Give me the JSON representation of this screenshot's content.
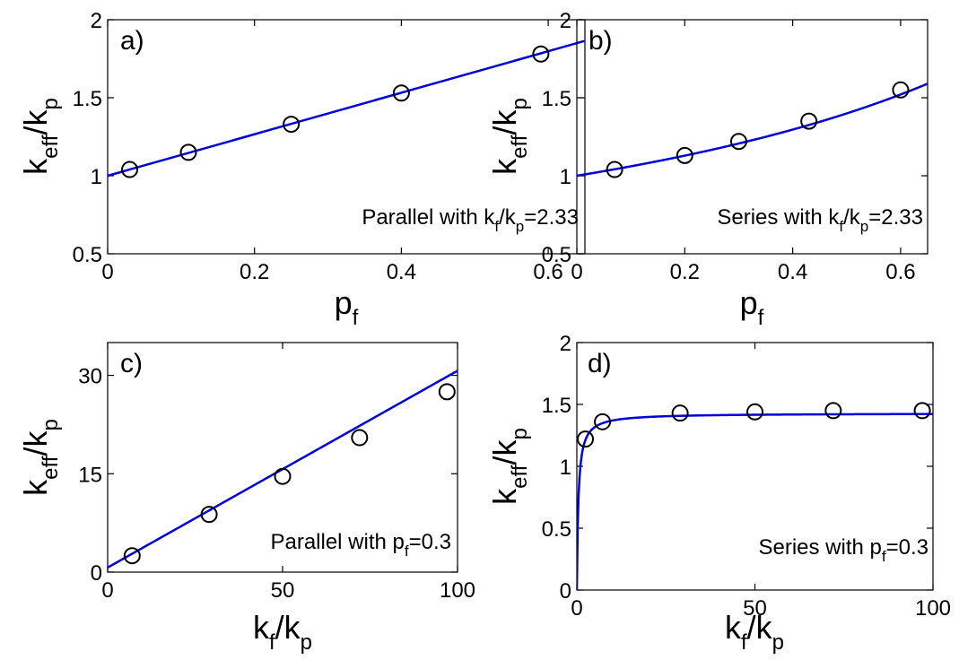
{
  "chart_data": [
    {
      "type": "scatter",
      "panel_label": "a)",
      "xlabel": {
        "base": "p",
        "sub": "f"
      },
      "ylabel": {
        "base1": "k",
        "sub1": "eff",
        "mid": "/k",
        "sub2": "p"
      },
      "annotation": {
        "before": "Parallel with k",
        "sub1": "f",
        "mid": "/k",
        "sub2": "p",
        "after": "=2.33"
      },
      "xlim": [
        0,
        0.65
      ],
      "ylim": [
        0.5,
        2
      ],
      "xticks": [
        0,
        0.2,
        0.4,
        0.6
      ],
      "xtick_labels": [
        "0",
        "0.2",
        "0.4",
        "0.6"
      ],
      "yticks": [
        0.5,
        1,
        1.5,
        2
      ],
      "ytick_labels": [
        "0.5",
        "1",
        "1.5",
        "2"
      ],
      "series": [
        {
          "kind": "markers",
          "x": [
            0.03,
            0.11,
            0.25,
            0.4,
            0.59
          ],
          "y": [
            1.04,
            1.15,
            1.33,
            1.53,
            1.78
          ]
        },
        {
          "kind": "line",
          "model": "parallel",
          "ratio": 2.33,
          "x_range": [
            0,
            0.65
          ]
        }
      ],
      "grid": false
    },
    {
      "type": "scatter",
      "panel_label": "b)",
      "xlabel": {
        "base": "p",
        "sub": "f"
      },
      "ylabel": {
        "base1": "k",
        "sub1": "eff",
        "mid": "/k",
        "sub2": "p"
      },
      "annotation": {
        "before": "Series with k",
        "sub1": "f",
        "mid": "/k",
        "sub2": "p",
        "after": "=2.33"
      },
      "xlim": [
        0,
        0.65
      ],
      "ylim": [
        0.5,
        2
      ],
      "xticks": [
        0,
        0.2,
        0.4,
        0.6
      ],
      "xtick_labels": [
        "0",
        "0.2",
        "0.4",
        "0.6"
      ],
      "yticks": [
        0.5,
        1,
        1.5,
        2
      ],
      "ytick_labels": [
        "0.5",
        "1",
        "1.5",
        "2"
      ],
      "series": [
        {
          "kind": "markers",
          "x": [
            0.07,
            0.2,
            0.3,
            0.43,
            0.6
          ],
          "y": [
            1.04,
            1.13,
            1.22,
            1.35,
            1.55
          ]
        },
        {
          "kind": "line",
          "model": "series",
          "ratio": 2.33,
          "x_range": [
            0,
            0.65
          ]
        }
      ],
      "grid": false
    },
    {
      "type": "scatter",
      "panel_label": "c)",
      "xlabel": {
        "base1": "k",
        "sub1": "f",
        "mid": "/k",
        "sub2": "p"
      },
      "ylabel": {
        "base1": "k",
        "sub1": "eff",
        "mid": "/k",
        "sub2": "p"
      },
      "annotation": {
        "before": "Parallel with p",
        "sub1": "f",
        "after": "=0.3"
      },
      "xlim": [
        0,
        100
      ],
      "ylim": [
        0,
        35
      ],
      "xticks": [
        0,
        50,
        100
      ],
      "xtick_labels": [
        "0",
        "50",
        "100"
      ],
      "yticks": [
        0,
        15,
        30
      ],
      "ytick_labels": [
        "0",
        "15",
        "30"
      ],
      "series": [
        {
          "kind": "markers",
          "x": [
            7,
            29,
            50,
            72,
            97
          ],
          "y": [
            2.5,
            8.8,
            14.6,
            20.5,
            27.5
          ]
        },
        {
          "kind": "line",
          "model": "parallel",
          "pf": 0.3,
          "x_range": [
            0,
            100
          ]
        }
      ],
      "grid": false
    },
    {
      "type": "scatter",
      "panel_label": "d)",
      "xlabel": {
        "base1": "k",
        "sub1": "f",
        "mid": "/k",
        "sub2": "p"
      },
      "ylabel": {
        "base1": "k",
        "sub1": "eff",
        "mid": "/k",
        "sub2": "p"
      },
      "annotation": {
        "before": "Series with p",
        "sub1": "f",
        "after": "=0.3"
      },
      "xlim": [
        0,
        100
      ],
      "ylim": [
        0,
        2
      ],
      "xticks": [
        0,
        50,
        100
      ],
      "xtick_labels": [
        "0",
        "50",
        "100"
      ],
      "yticks": [
        0,
        0.5,
        1,
        1.5,
        2
      ],
      "ytick_labels": [
        "0",
        "0.5",
        "1",
        "1.5",
        "2"
      ],
      "series": [
        {
          "kind": "markers",
          "x": [
            2.4,
            7.2,
            29,
            50,
            72,
            97
          ],
          "y": [
            1.22,
            1.36,
            1.43,
            1.44,
            1.45,
            1.45
          ]
        },
        {
          "kind": "line",
          "model": "series",
          "pf": 0.3,
          "x_range": [
            0,
            100
          ]
        }
      ],
      "grid": false
    }
  ],
  "colors": {
    "fit_line": "#0000d8",
    "markers": "#000000",
    "axes": "#000000"
  },
  "marker_shape": "open-circle"
}
